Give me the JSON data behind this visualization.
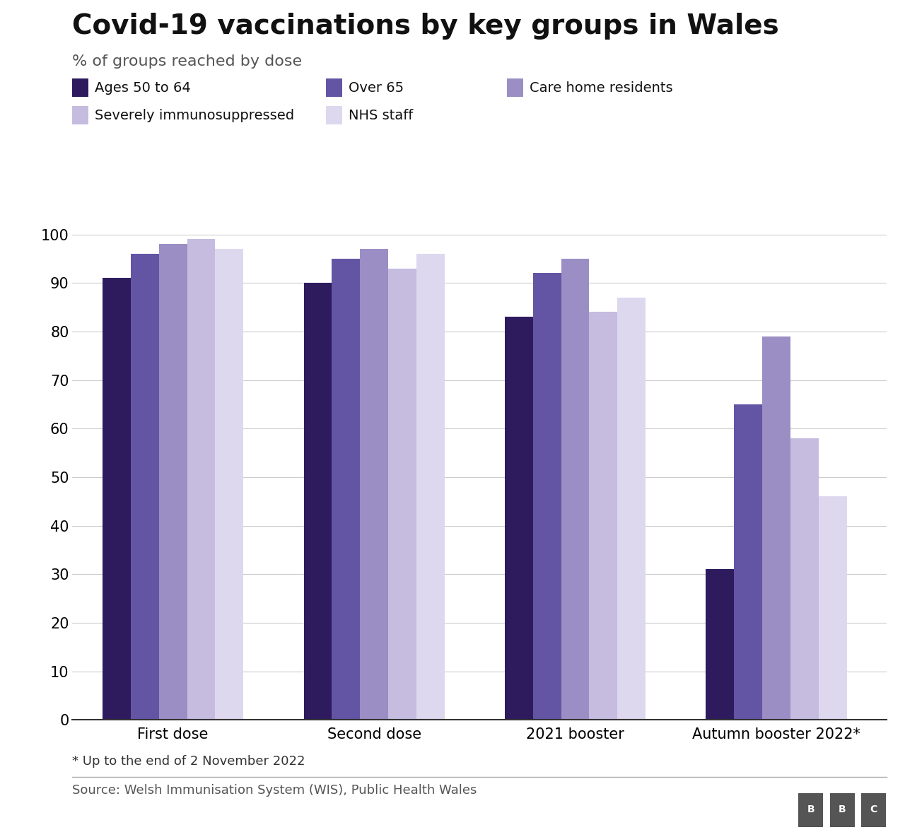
{
  "title": "Covid-19 vaccinations by key groups in Wales",
  "subtitle": "% of groups reached by dose",
  "footnote": "* Up to the end of 2 November 2022",
  "source": "Source: Welsh Immunisation System (WIS), Public Health Wales",
  "categories": [
    "First dose",
    "Second dose",
    "2021 booster",
    "Autumn booster 2022*"
  ],
  "series": [
    {
      "name": "Ages 50 to 64",
      "color": "#2d1b5e",
      "values": [
        91,
        90,
        83,
        31
      ]
    },
    {
      "name": "Over 65",
      "color": "#6355a4",
      "values": [
        96,
        95,
        92,
        65
      ]
    },
    {
      "name": "Care home residents",
      "color": "#9b8ec4",
      "values": [
        98,
        97,
        95,
        79
      ]
    },
    {
      "name": "Severely immunosuppressed",
      "color": "#c5bce0",
      "values": [
        99,
        93,
        84,
        58
      ]
    },
    {
      "name": "NHS staff",
      "color": "#ddd8ee",
      "values": [
        97,
        96,
        87,
        46
      ]
    }
  ],
  "ylim": [
    0,
    100
  ],
  "yticks": [
    0,
    10,
    20,
    30,
    40,
    50,
    60,
    70,
    80,
    90,
    100
  ],
  "bar_width": 0.14,
  "background_color": "#ffffff",
  "grid_color": "#cccccc",
  "title_fontsize": 28,
  "subtitle_fontsize": 16,
  "tick_fontsize": 15,
  "legend_fontsize": 14,
  "footer_fontsize": 13
}
